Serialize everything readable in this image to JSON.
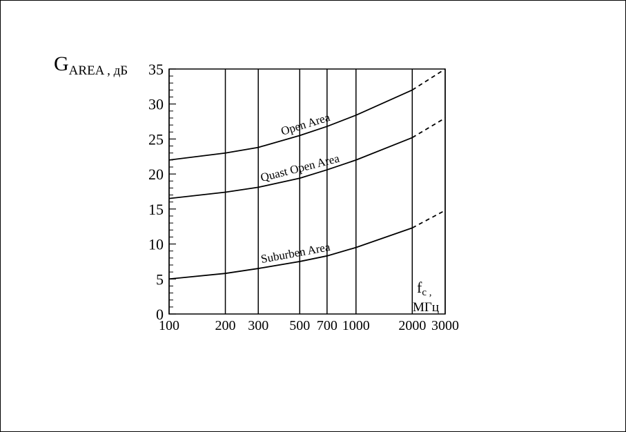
{
  "chart_data": {
    "type": "line",
    "ylabel": "G",
    "ylabel_sub": "AREA , дБ",
    "xlabel": "f",
    "xlabel_sub": "c ,",
    "xunit": "МГц",
    "x": [
      100,
      200,
      300,
      500,
      700,
      1000,
      2000,
      3000
    ],
    "xlim": [
      100,
      3000
    ],
    "xticks": [
      100,
      200,
      300,
      500,
      700,
      1000,
      2000,
      3000
    ],
    "xscale": "log",
    "ylim": [
      0,
      35
    ],
    "yticks": [
      0,
      5,
      10,
      15,
      20,
      25,
      30,
      35
    ],
    "grid_x": true,
    "extrapolated_from_x": 2000,
    "color": "#000000",
    "series": [
      {
        "name": "Open Area",
        "values": [
          22,
          23,
          23.8,
          25.5,
          26.8,
          28.4,
          32,
          35
        ]
      },
      {
        "name": "Quast Open Area",
        "values": [
          16.5,
          17.4,
          18.1,
          19.4,
          20.6,
          22,
          25.2,
          28
        ]
      },
      {
        "name": "Suburben Area",
        "values": [
          5,
          5.8,
          6.5,
          7.5,
          8.3,
          9.5,
          12.3,
          14.8
        ]
      }
    ]
  }
}
